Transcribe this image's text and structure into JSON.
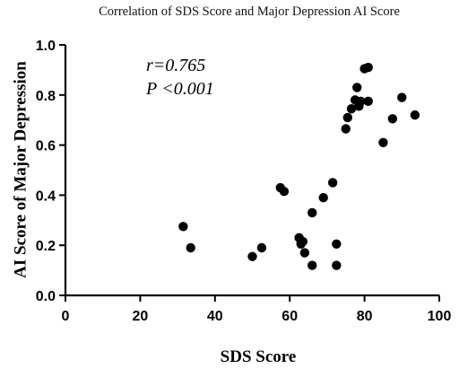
{
  "chart_data": {
    "type": "scatter",
    "title": "Correlation of SDS Score and  Major Depression AI Score",
    "xlabel": "SDS Score",
    "ylabel": "AI Score of Major Depression",
    "xlim": [
      0,
      100
    ],
    "ylim": [
      0,
      1.0
    ],
    "xticks": [
      "0",
      "20",
      "40",
      "60",
      "80",
      "100"
    ],
    "yticks": [
      "0.0",
      "0.2",
      "0.4",
      "0.6",
      "0.8",
      "1.0"
    ],
    "grid": false,
    "annotations": [
      "r=0.765",
      "P <0.001"
    ],
    "marker_color": "#000000",
    "points": [
      {
        "x": 31.5,
        "y": 0.275
      },
      {
        "x": 33.5,
        "y": 0.19
      },
      {
        "x": 50,
        "y": 0.155
      },
      {
        "x": 52.5,
        "y": 0.19
      },
      {
        "x": 57.5,
        "y": 0.43
      },
      {
        "x": 58.5,
        "y": 0.415
      },
      {
        "x": 62.5,
        "y": 0.23
      },
      {
        "x": 63,
        "y": 0.205
      },
      {
        "x": 63.5,
        "y": 0.215
      },
      {
        "x": 64,
        "y": 0.17
      },
      {
        "x": 66,
        "y": 0.12
      },
      {
        "x": 66,
        "y": 0.33
      },
      {
        "x": 69,
        "y": 0.39
      },
      {
        "x": 71.5,
        "y": 0.45
      },
      {
        "x": 72.5,
        "y": 0.205
      },
      {
        "x": 72.5,
        "y": 0.12
      },
      {
        "x": 75,
        "y": 0.665
      },
      {
        "x": 75.5,
        "y": 0.71
      },
      {
        "x": 76.5,
        "y": 0.745
      },
      {
        "x": 77.5,
        "y": 0.78
      },
      {
        "x": 78,
        "y": 0.83
      },
      {
        "x": 78.5,
        "y": 0.755
      },
      {
        "x": 79,
        "y": 0.775
      },
      {
        "x": 80,
        "y": 0.905
      },
      {
        "x": 81,
        "y": 0.775
      },
      {
        "x": 81,
        "y": 0.91
      },
      {
        "x": 85,
        "y": 0.61
      },
      {
        "x": 87.5,
        "y": 0.705
      },
      {
        "x": 90,
        "y": 0.79
      },
      {
        "x": 93.5,
        "y": 0.72
      }
    ]
  }
}
